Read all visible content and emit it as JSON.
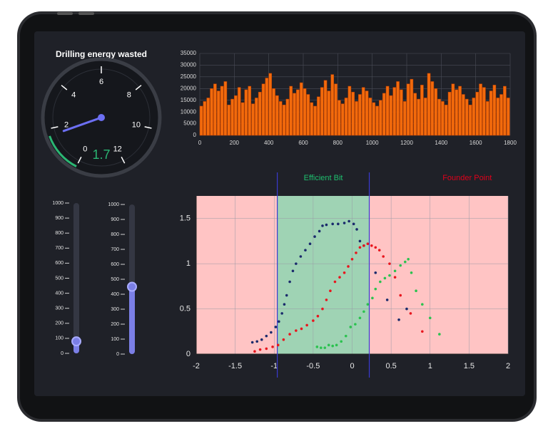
{
  "chart_data": [
    {
      "type": "gauge",
      "title": "Drilling energy wasted",
      "value": 1.7,
      "range": [
        0,
        12
      ],
      "ticks": [
        0,
        2,
        4,
        6,
        8,
        10,
        12
      ],
      "color": "#2bb673",
      "needle_color": "#6c6ff2"
    },
    {
      "type": "bar",
      "color": "#f26a0c",
      "grid": true,
      "x": [
        0,
        20,
        40,
        60,
        80,
        100,
        120,
        140,
        160,
        180,
        200,
        220,
        240,
        260,
        280,
        300,
        320,
        340,
        360,
        380,
        400,
        420,
        440,
        460,
        480,
        500,
        520,
        540,
        560,
        580,
        600,
        620,
        640,
        660,
        680,
        700,
        720,
        740,
        760,
        780,
        800,
        820,
        840,
        860,
        880,
        900,
        920,
        940,
        960,
        980,
        1000,
        1020,
        1040,
        1060,
        1080,
        1100,
        1120,
        1140,
        1160,
        1180,
        1200,
        1220,
        1240,
        1260,
        1280,
        1300,
        1320,
        1340,
        1360,
        1380,
        1400,
        1420,
        1440,
        1460,
        1480,
        1500,
        1520,
        1540,
        1560,
        1580,
        1600,
        1620,
        1640,
        1660,
        1680,
        1700,
        1720,
        1740,
        1760,
        1780
      ],
      "values": [
        12500,
        14500,
        16000,
        20000,
        22000,
        19000,
        21000,
        23000,
        13000,
        15500,
        17000,
        20500,
        14000,
        19500,
        21000,
        13500,
        16000,
        18500,
        22000,
        24500,
        26500,
        20000,
        17000,
        14500,
        13000,
        15500,
        21000,
        18000,
        19500,
        22500,
        20000,
        17500,
        14000,
        12500,
        16500,
        20500,
        23500,
        19000,
        26000,
        22000,
        15000,
        13500,
        16000,
        21000,
        18500,
        14500,
        17500,
        20500,
        19000,
        16000,
        14000,
        12500,
        15000,
        18000,
        21000,
        17000,
        20500,
        23000,
        19500,
        14500,
        22000,
        24000,
        18000,
        15500,
        21500,
        16000,
        26500,
        23000,
        20000,
        15500,
        14500,
        13000,
        18500,
        22000,
        19500,
        21000,
        17500,
        15500,
        13000,
        16000,
        18500,
        22000,
        20500,
        14500,
        19000,
        21500,
        16000,
        17500,
        21000,
        16000
      ],
      "xlim": [
        0,
        1800
      ],
      "xticks": [
        0,
        200,
        400,
        600,
        800,
        1000,
        1200,
        1400,
        1600,
        1800
      ],
      "ylim": [
        0,
        35000
      ],
      "yticks": [
        0,
        5000,
        10000,
        15000,
        20000,
        25000,
        30000,
        35000
      ]
    },
    {
      "type": "slider",
      "value": 80,
      "ylim": [
        0,
        1000
      ],
      "yticks": [
        0,
        100,
        200,
        300,
        400,
        500,
        600,
        700,
        800,
        900,
        1000
      ],
      "color": "#7b7fe6"
    },
    {
      "type": "slider",
      "value": 450,
      "ylim": [
        0,
        1000
      ],
      "yticks": [
        0,
        100,
        200,
        300,
        400,
        500,
        600,
        700,
        800,
        900,
        1000
      ],
      "color": "#7b7fe6"
    },
    {
      "type": "scatter",
      "background": "#ffc4c4",
      "grid": true,
      "regions": [
        {
          "label": "Efficient Bit",
          "range": [
            -0.96,
            0.22
          ],
          "color": "#9fd3b4",
          "label_color": "#1fbf6e"
        },
        {
          "label": "Founder Point",
          "range": [
            0.22,
            2
          ],
          "color": "#ffc4c4",
          "label_color": "#e0001b"
        }
      ],
      "xlim": [
        -2,
        2
      ],
      "xticks": [
        -2,
        -1.5,
        -1,
        -0.5,
        0,
        0.5,
        1,
        1.5,
        2
      ],
      "ylim": [
        0,
        1.75
      ],
      "yticks": [
        0,
        0.5,
        1,
        1.5
      ],
      "series": [
        {
          "color": "#1a2a6c",
          "x": [
            -1.28,
            -1.22,
            -1.16,
            -1.1,
            -1.04,
            -0.98,
            -0.94,
            -0.9,
            -0.87,
            -0.84,
            -0.8,
            -0.76,
            -0.72,
            -0.66,
            -0.6,
            -0.54,
            -0.48,
            -0.42,
            -0.38,
            -0.33,
            -0.25,
            -0.18,
            -0.1,
            -0.04,
            0.02,
            0.06,
            0.1,
            0.15,
            0.3,
            0.45,
            0.6,
            0.7
          ],
          "values": [
            0.13,
            0.14,
            0.16,
            0.2,
            0.24,
            0.3,
            0.36,
            0.45,
            0.55,
            0.65,
            0.8,
            0.92,
            1.0,
            1.08,
            1.15,
            1.22,
            1.3,
            1.36,
            1.42,
            1.43,
            1.44,
            1.44,
            1.45,
            1.47,
            1.44,
            1.38,
            1.25,
            1.2,
            0.9,
            0.6,
            0.38,
            0.5
          ]
        },
        {
          "color": "#e8161e",
          "x": [
            -1.25,
            -1.18,
            -1.1,
            -1.02,
            -0.95,
            -0.88,
            -0.8,
            -0.72,
            -0.65,
            -0.58,
            -0.5,
            -0.44,
            -0.38,
            -0.33,
            -0.28,
            -0.22,
            -0.16,
            -0.1,
            -0.05,
            0,
            0.05,
            0.1,
            0.15,
            0.2,
            0.25,
            0.3,
            0.35,
            0.4,
            0.48,
            0.55,
            0.62,
            0.75,
            0.9
          ],
          "values": [
            0.03,
            0.05,
            0.06,
            0.08,
            0.1,
            0.16,
            0.22,
            0.26,
            0.28,
            0.32,
            0.37,
            0.42,
            0.5,
            0.6,
            0.7,
            0.8,
            0.85,
            0.9,
            0.97,
            1.05,
            1.12,
            1.18,
            1.2,
            1.22,
            1.2,
            1.18,
            1.15,
            1.08,
            1.0,
            0.85,
            0.65,
            0.45,
            0.25
          ]
        },
        {
          "color": "#2bc24f",
          "x": [
            -0.45,
            -0.4,
            -0.35,
            -0.3,
            -0.25,
            -0.2,
            -0.14,
            -0.08,
            -0.02,
            0.04,
            0.1,
            0.15,
            0.2,
            0.26,
            0.3,
            0.36,
            0.42,
            0.48,
            0.55,
            0.62,
            0.68,
            0.72,
            0.76,
            0.82,
            0.9,
            1.0,
            1.12
          ],
          "values": [
            0.08,
            0.07,
            0.07,
            0.1,
            0.09,
            0.1,
            0.14,
            0.2,
            0.3,
            0.33,
            0.4,
            0.47,
            0.55,
            0.62,
            0.72,
            0.8,
            0.84,
            0.87,
            0.92,
            0.98,
            1.02,
            1.05,
            0.9,
            0.7,
            0.55,
            0.4,
            0.22
          ]
        }
      ]
    }
  ]
}
